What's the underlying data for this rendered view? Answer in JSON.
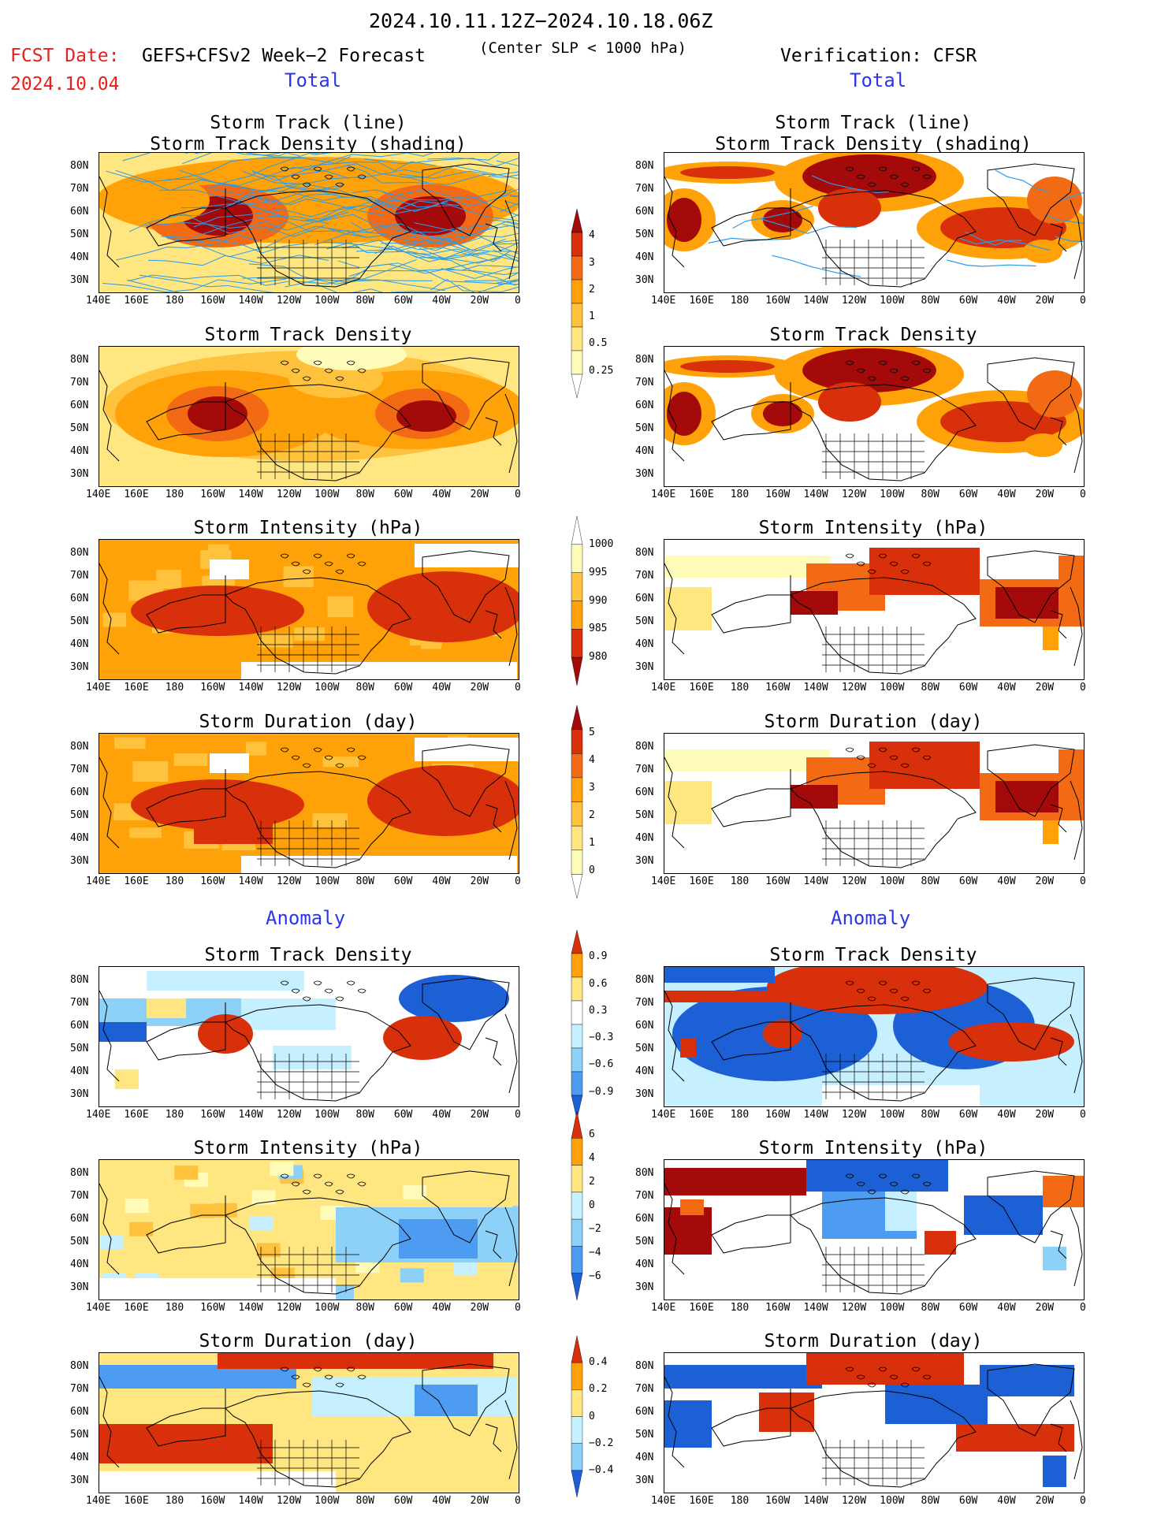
{
  "header": {
    "date_range": "2024.10.11.12Z−2024.10.18.06Z",
    "fcst_label": "FCST Date:",
    "fcst_date": "2024.10.04",
    "forecast_name": "GEFS+CFSv2 Week−2 Forecast",
    "criterion": "(Center SLP < 1000 hPa)",
    "verification": "Verification: CFSR"
  },
  "sections": {
    "total_left": "Total",
    "total_right": "Total",
    "anomaly_left": "Anomaly",
    "anomaly_right": "Anomaly"
  },
  "panel_titles": {
    "track_line": "Storm Track (line)",
    "track_shading": "Storm Track Density (shading)",
    "density": "Storm Track Density",
    "intensity": "Storm Intensity (hPa)",
    "duration": "Storm Duration (day)"
  },
  "axes": {
    "lon_ticks": [
      "140E",
      "160E",
      "180",
      "160W",
      "140W",
      "120W",
      "100W",
      "80W",
      "60W",
      "40W",
      "20W",
      "0"
    ],
    "lat_ticks": [
      "80N",
      "70N",
      "60N",
      "50N",
      "40N",
      "30N"
    ]
  },
  "colorbars": {
    "total_density": [
      "4",
      "3",
      "2",
      "1",
      "0.5",
      "0.25"
    ],
    "total_intensity": [
      "1000",
      "995",
      "990",
      "985",
      "980"
    ],
    "total_duration": [
      "5",
      "4",
      "3",
      "2",
      "1",
      "0"
    ],
    "anom_density": [
      "0.9",
      "0.6",
      "0.3",
      "−0.3",
      "−0.6",
      "−0.9"
    ],
    "anom_intensity": [
      "6",
      "4",
      "2",
      "0",
      "−2",
      "−4",
      "−6"
    ],
    "anom_duration": [
      "0.4",
      "0.2",
      "0",
      "−0.2",
      "−0.4"
    ]
  },
  "colors": {
    "warm": [
      "#fffbb8",
      "#ffe680",
      "#ffc23d",
      "#ffa20a",
      "#f26b14",
      "#d9300c",
      "#a50a0a"
    ],
    "cool": [
      "#c6f0ff",
      "#8ed1f8",
      "#4d9cf2",
      "#1d60d6"
    ],
    "track_line": "#2b9be8",
    "title_blue": "#2b36e8",
    "fcst_red": "#e8201c"
  }
}
